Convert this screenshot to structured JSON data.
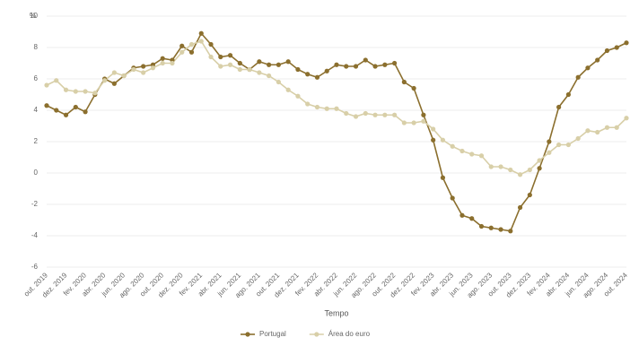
{
  "chart_data": {
    "type": "line",
    "y_unit": "%",
    "x_label": "Tempo",
    "categories": [
      "out. 2019",
      null,
      "dez. 2019",
      null,
      "fev. 2020",
      null,
      "abr. 2020",
      null,
      "jun. 2020",
      null,
      "ago. 2020",
      null,
      "out. 2020",
      null,
      "dez. 2020",
      null,
      "fev. 2021",
      null,
      "abr. 2021",
      null,
      "jun. 2021",
      null,
      "ago. 2021",
      null,
      "out. 2021",
      null,
      "dez. 2021",
      null,
      "fev. 2022",
      null,
      "abr. 2022",
      null,
      "jun. 2022",
      null,
      "ago. 2022",
      null,
      "out. 2022",
      null,
      "dez. 2022",
      null,
      "fev. 2023",
      null,
      "abr. 2023",
      null,
      "jun. 2023",
      null,
      "ago. 2023",
      null,
      "out. 2023",
      null,
      "dez. 2023",
      null,
      "fev. 2024",
      null,
      "abr. 2024",
      null,
      "jun. 2024",
      null,
      "ago. 2024",
      null,
      "out. 2024"
    ],
    "series": [
      {
        "name": "Portugal",
        "color": "#8b6f2e",
        "values": [
          4.3,
          4.0,
          3.7,
          4.2,
          3.9,
          5.0,
          6.0,
          5.7,
          6.2,
          6.7,
          6.8,
          6.9,
          7.3,
          7.2,
          8.1,
          7.7,
          8.9,
          8.2,
          7.4,
          7.5,
          7.0,
          6.6,
          7.1,
          6.9,
          6.9,
          7.1,
          6.6,
          6.3,
          6.1,
          6.5,
          6.9,
          6.8,
          6.8,
          7.2,
          6.8,
          6.9,
          7.0,
          5.8,
          5.4,
          3.7,
          2.1,
          -0.3,
          -1.6,
          -2.7,
          -2.9,
          -3.4,
          -3.5,
          -3.6,
          -3.7,
          -2.2,
          -1.4,
          0.3,
          2.0,
          4.2,
          5.0,
          6.1,
          6.7,
          7.2,
          7.8,
          8.0,
          8.3
        ]
      },
      {
        "name": "Área do euro",
        "color": "#d8cfa8",
        "values": [
          5.6,
          5.9,
          5.3,
          5.2,
          5.2,
          5.1,
          5.9,
          6.4,
          6.2,
          6.6,
          6.4,
          6.7,
          7.0,
          7.0,
          7.7,
          8.2,
          8.4,
          7.4,
          6.8,
          6.9,
          6.6,
          6.6,
          6.4,
          6.2,
          5.8,
          5.3,
          4.9,
          4.4,
          4.2,
          4.1,
          4.1,
          3.8,
          3.6,
          3.8,
          3.7,
          3.7,
          3.7,
          3.2,
          3.2,
          3.3,
          2.8,
          2.1,
          1.7,
          1.4,
          1.2,
          1.1,
          0.4,
          0.4,
          0.2,
          -0.1,
          0.2,
          0.8,
          1.3,
          1.8,
          1.8,
          2.2,
          2.7,
          2.6,
          2.9,
          2.9,
          3.5
        ]
      }
    ],
    "ylim": [
      -6,
      10
    ],
    "yticks": [
      -6,
      -4,
      -2,
      0,
      2,
      4,
      6,
      8,
      10
    ],
    "grid": true,
    "legend": "bottom"
  }
}
